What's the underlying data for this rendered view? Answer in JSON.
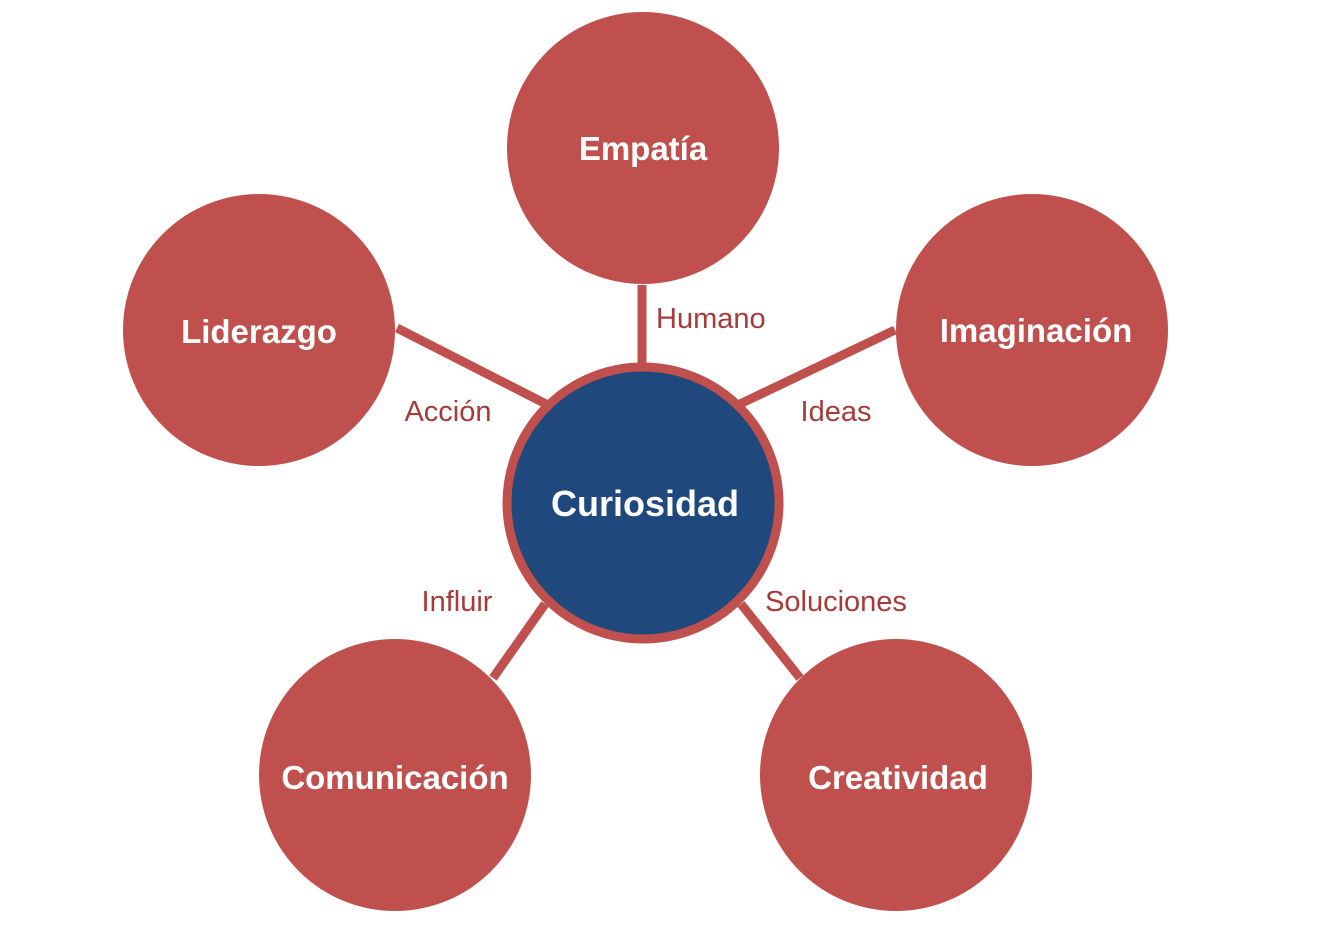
{
  "colors": {
    "node_fill": "#c0504d",
    "center_fill": "#1f497d",
    "center_ring": "#c0504d",
    "connector": "#c0504d",
    "edge_text": "#a83a3a",
    "node_text": "#ffffff"
  },
  "center": {
    "label": "Curiosidad"
  },
  "nodes": [
    {
      "id": "empatia",
      "label": "Empatía",
      "connector_label": "Humano"
    },
    {
      "id": "imaginacion",
      "label": "Imaginación",
      "connector_label": "Ideas"
    },
    {
      "id": "creatividad",
      "label": "Creatividad",
      "connector_label": "Soluciones"
    },
    {
      "id": "comunicacion",
      "label": "Comunicación",
      "connector_label": "Influir"
    },
    {
      "id": "liderazgo",
      "label": "Liderazgo",
      "connector_label": "Acción"
    }
  ]
}
